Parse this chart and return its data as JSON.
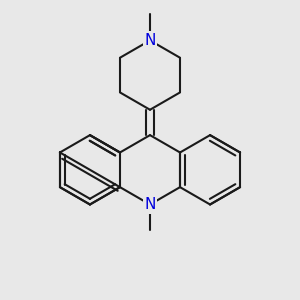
{
  "bg_color": "#e8e8e8",
  "bond_color": "#1a1a1a",
  "N_color": "#0000dd",
  "lw": 1.5,
  "N_fontsize": 11,
  "figsize": [
    3.0,
    3.0
  ],
  "dpi": 100,
  "xlim": [
    0.05,
    0.95
  ],
  "ylim": [
    0.08,
    0.95
  ]
}
